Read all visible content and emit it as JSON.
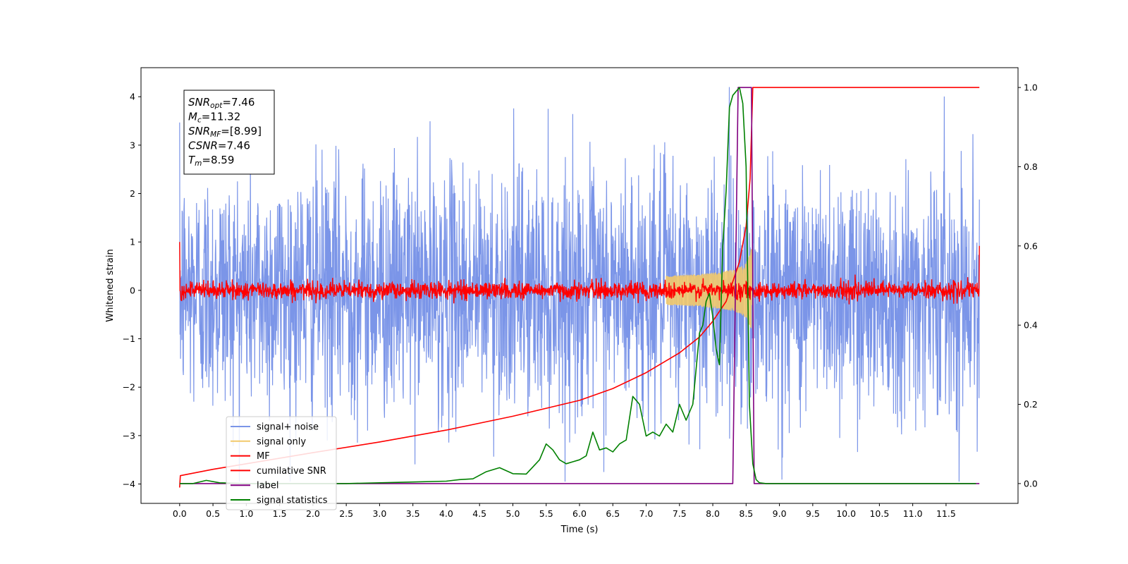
{
  "chart_data": {
    "type": "line",
    "title": "",
    "xlabel": "Time (s)",
    "ylabel": "Whitened strain",
    "xlim": [
      -0.58,
      12.58
    ],
    "ylim": [
      -4.4,
      4.6
    ],
    "y2lim": [
      -0.05,
      1.05
    ],
    "xticks": [
      "0.0",
      "0.5",
      "1.0",
      "1.5",
      "2.0",
      "2.5",
      "3.0",
      "3.5",
      "4.0",
      "4.5",
      "5.0",
      "5.5",
      "6.0",
      "6.5",
      "7.0",
      "7.5",
      "8.0",
      "8.5",
      "9.0",
      "9.5",
      "10.0",
      "10.5",
      "11.0",
      "11.5"
    ],
    "yticks": [
      "4",
      "3",
      "2",
      "1",
      "0",
      "−1",
      "−2",
      "−3",
      "−4"
    ],
    "y2ticks": [
      "1.0",
      "0.8",
      "0.6",
      "0.4",
      "0.2",
      "0.0"
    ],
    "grid": false,
    "legend_position": "lower-left",
    "legend": [
      {
        "label": "signal+ noise",
        "color": "#7b95e8"
      },
      {
        "label": "signal only",
        "color": "#f2c96b"
      },
      {
        "label": "MF",
        "color": "#ff0000"
      },
      {
        "label": "cumilative SNR",
        "color": "#ff0000"
      },
      {
        "label": "label",
        "color": "#800080"
      },
      {
        "label": "signal statistics",
        "color": "#008000"
      }
    ],
    "annotation": {
      "lines": [
        {
          "base": "SNR",
          "sub": "opt",
          "rest": "=7.46"
        },
        {
          "base": "M",
          "sub": "c",
          "rest": "=11.32"
        },
        {
          "base": "SNR",
          "sub": "MF",
          "rest": "=[8.99]"
        },
        {
          "base": "CSNR",
          "sub": "",
          "rest": "=7.46"
        },
        {
          "base": "T",
          "sub": "m",
          "rest": "=8.59"
        }
      ]
    },
    "series": [
      {
        "name": "signal+ noise",
        "axis": "left",
        "color": "#7b95e8",
        "x_range": [
          0.0,
          12.0
        ],
        "noise_std": 1.0,
        "max": 4.2,
        "min": -3.95
      },
      {
        "name": "signal only",
        "axis": "left",
        "color": "#f2c96b",
        "chirp": {
          "t_start": 7.3,
          "t_merger": 8.59,
          "peak_amplitude": 0.85
        }
      },
      {
        "name": "MF",
        "axis": "left",
        "color": "#ff0000",
        "x_range": [
          0.0,
          12.0
        ],
        "noise_std": 0.09,
        "start_value": 1.0,
        "end_value": 0.92
      },
      {
        "name": "cumilative SNR",
        "axis": "right",
        "color": "#ff0000",
        "x": [
          0.0,
          0.01,
          0.5,
          1.0,
          2.0,
          3.0,
          4.0,
          5.0,
          6.0,
          6.5,
          7.0,
          7.5,
          7.8,
          8.0,
          8.2,
          8.4,
          8.5,
          8.56,
          8.6,
          9.0,
          10.0,
          11.0,
          12.0
        ],
        "y": [
          -0.01,
          0.02,
          0.036,
          0.05,
          0.078,
          0.105,
          0.135,
          0.17,
          0.21,
          0.24,
          0.28,
          0.33,
          0.37,
          0.41,
          0.46,
          0.56,
          0.65,
          0.77,
          1.0,
          1.0,
          1.0,
          1.0,
          1.0
        ]
      },
      {
        "name": "label",
        "axis": "right",
        "color": "#800080",
        "x": [
          0.0,
          8.3,
          8.38,
          8.58,
          8.62,
          12.0
        ],
        "y": [
          0.0,
          0.0,
          1.0,
          1.0,
          0.0,
          0.0
        ]
      },
      {
        "name": "signal statistics",
        "axis": "right",
        "color": "#008000",
        "x": [
          0.0,
          0.2,
          0.4,
          0.6,
          1.0,
          1.5,
          2.0,
          2.5,
          3.0,
          3.5,
          4.0,
          4.2,
          4.4,
          4.6,
          4.8,
          5.0,
          5.2,
          5.4,
          5.5,
          5.6,
          5.7,
          5.8,
          5.9,
          6.0,
          6.1,
          6.2,
          6.3,
          6.4,
          6.5,
          6.6,
          6.7,
          6.8,
          6.9,
          7.0,
          7.1,
          7.2,
          7.3,
          7.4,
          7.5,
          7.6,
          7.7,
          7.8,
          7.85,
          7.9,
          7.95,
          8.0,
          8.05,
          8.1,
          8.15,
          8.2,
          8.25,
          8.3,
          8.35,
          8.4,
          8.45,
          8.5,
          8.55,
          8.6,
          8.65,
          8.7,
          8.8,
          9.0,
          10.0,
          11.0,
          11.95
        ],
        "y": [
          0.0,
          0.0,
          0.008,
          0.002,
          0.0,
          0.0,
          0.0,
          0.0,
          0.002,
          0.004,
          0.006,
          0.01,
          0.012,
          0.03,
          0.04,
          0.025,
          0.024,
          0.06,
          0.1,
          0.085,
          0.06,
          0.05,
          0.055,
          0.06,
          0.07,
          0.13,
          0.085,
          0.09,
          0.08,
          0.1,
          0.11,
          0.22,
          0.2,
          0.12,
          0.13,
          0.12,
          0.15,
          0.13,
          0.2,
          0.16,
          0.2,
          0.38,
          0.4,
          0.46,
          0.48,
          0.42,
          0.34,
          0.3,
          0.6,
          0.74,
          0.95,
          0.98,
          0.99,
          1.0,
          0.96,
          0.8,
          0.2,
          0.05,
          0.01,
          0.002,
          0.0,
          0.0,
          0.0,
          0.0,
          0.0
        ]
      }
    ]
  }
}
